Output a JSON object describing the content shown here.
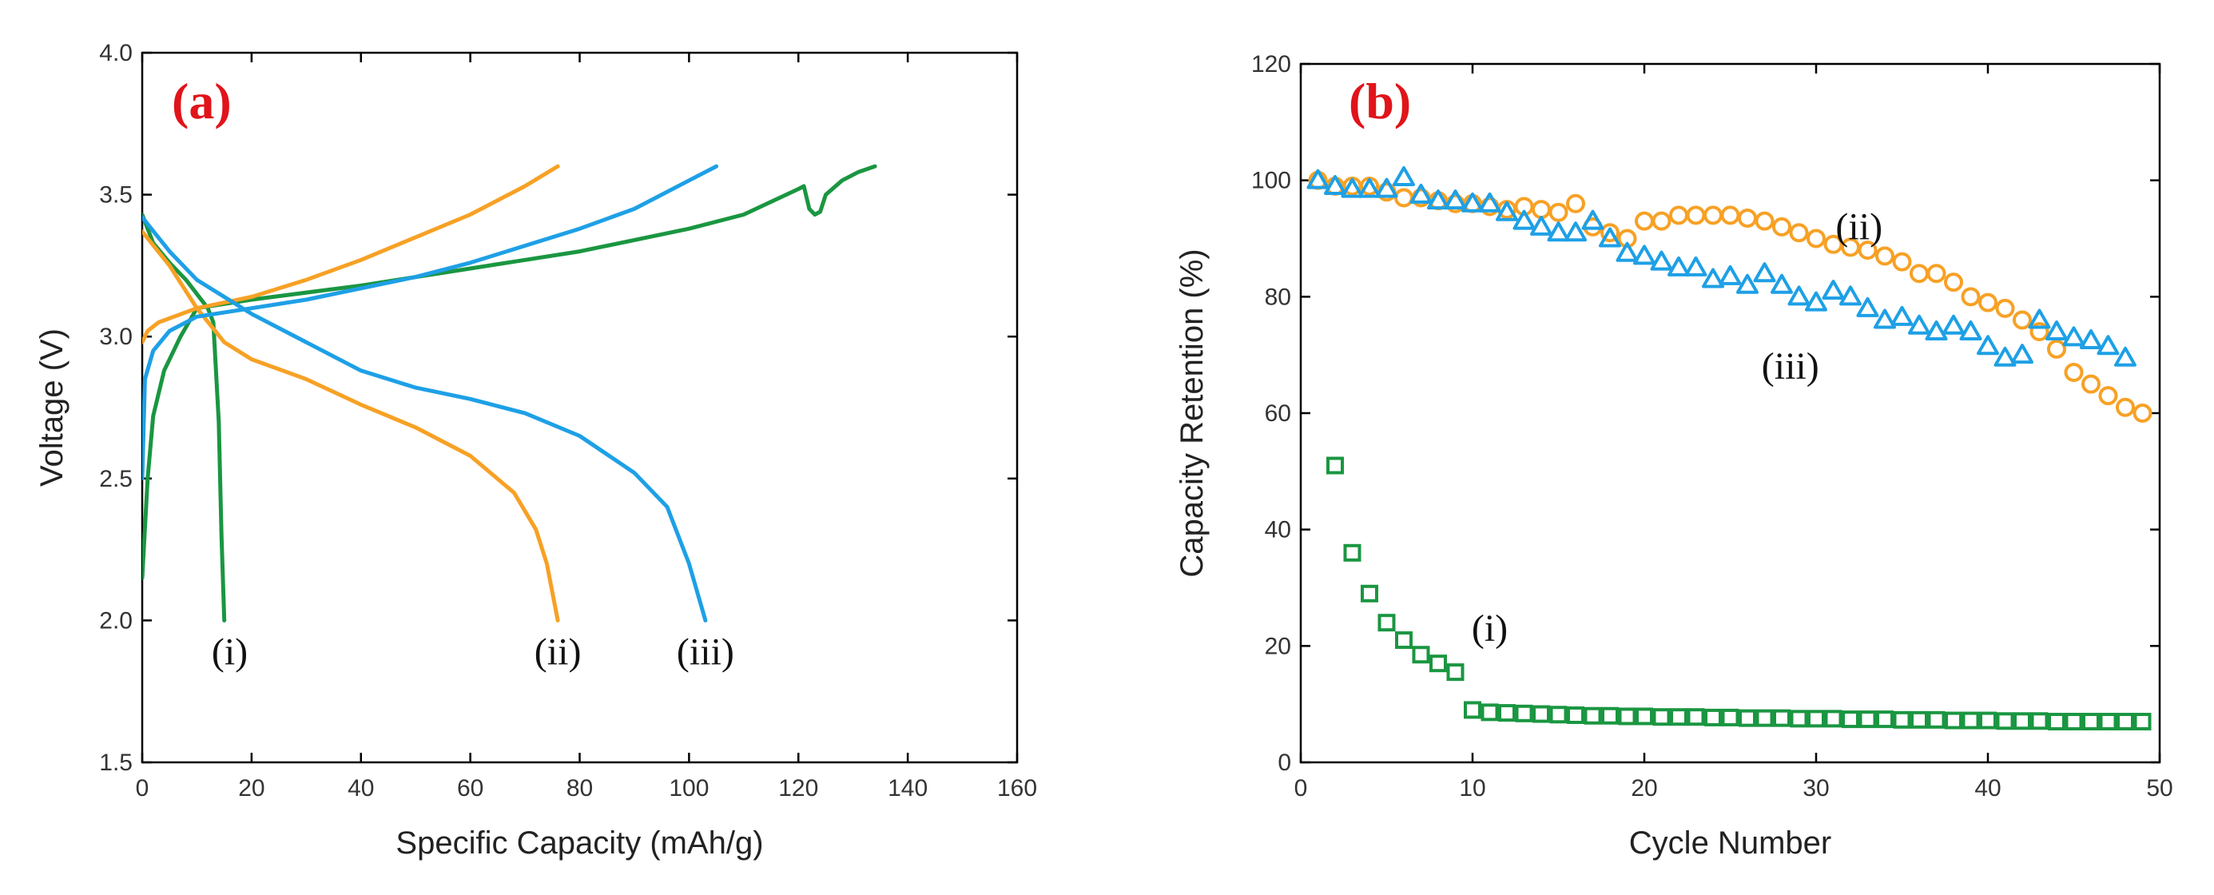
{
  "chart_data": [
    {
      "panel": "(a)",
      "type": "line",
      "xlabel": "Specific Capacity (mAh/g)",
      "ylabel": "Voltage (V)",
      "xlim": [
        0,
        160
      ],
      "ylim": [
        1.5,
        4.0
      ],
      "xticks": [
        0,
        20,
        40,
        60,
        80,
        100,
        120,
        140,
        160
      ],
      "yticks": [
        1.5,
        2.0,
        2.5,
        3.0,
        3.5,
        4.0
      ],
      "ytick_labels": [
        "1.5",
        "2.0",
        "2.5",
        "3.0",
        "3.5",
        "4.0"
      ],
      "series": [
        {
          "name": "(i)",
          "color": "#1a9641",
          "curves": [
            {
              "kind": "charge",
              "points": [
                [
                  0,
                  2.15
                ],
                [
                  1,
                  2.5
                ],
                [
                  2,
                  2.72
                ],
                [
                  4,
                  2.88
                ],
                [
                  7,
                  3.0
                ],
                [
                  10,
                  3.1
                ],
                [
                  20,
                  3.13
                ],
                [
                  40,
                  3.18
                ],
                [
                  60,
                  3.24
                ],
                [
                  80,
                  3.3
                ],
                [
                  100,
                  3.38
                ],
                [
                  110,
                  3.43
                ],
                [
                  120,
                  3.52
                ],
                [
                  121,
                  3.53
                ],
                [
                  122,
                  3.45
                ],
                [
                  123,
                  3.43
                ],
                [
                  124,
                  3.44
                ],
                [
                  125,
                  3.5
                ],
                [
                  128,
                  3.55
                ],
                [
                  131,
                  3.58
                ],
                [
                  134,
                  3.6
                ]
              ]
            },
            {
              "kind": "discharge",
              "points": [
                [
                  0,
                  3.43
                ],
                [
                  2,
                  3.33
                ],
                [
                  5,
                  3.26
                ],
                [
                  8,
                  3.2
                ],
                [
                  10,
                  3.15
                ],
                [
                  12,
                  3.1
                ],
                [
                  13,
                  3.05
                ],
                [
                  14,
                  2.7
                ],
                [
                  14.5,
                  2.3
                ],
                [
                  15,
                  2.0
                ]
              ]
            }
          ]
        },
        {
          "name": "(ii)",
          "color": "#f7a125",
          "curves": [
            {
              "kind": "charge",
              "points": [
                [
                  0,
                  2.98
                ],
                [
                  1,
                  3.02
                ],
                [
                  3,
                  3.05
                ],
                [
                  10,
                  3.1
                ],
                [
                  20,
                  3.14
                ],
                [
                  30,
                  3.2
                ],
                [
                  40,
                  3.27
                ],
                [
                  50,
                  3.35
                ],
                [
                  60,
                  3.43
                ],
                [
                  70,
                  3.53
                ],
                [
                  76,
                  3.6
                ]
              ]
            },
            {
              "kind": "discharge",
              "points": [
                [
                  0,
                  3.37
                ],
                [
                  5,
                  3.25
                ],
                [
                  10,
                  3.1
                ],
                [
                  15,
                  2.98
                ],
                [
                  20,
                  2.92
                ],
                [
                  30,
                  2.85
                ],
                [
                  40,
                  2.76
                ],
                [
                  50,
                  2.68
                ],
                [
                  60,
                  2.58
                ],
                [
                  68,
                  2.45
                ],
                [
                  72,
                  2.32
                ],
                [
                  74,
                  2.2
                ],
                [
                  76,
                  2.0
                ]
              ]
            }
          ]
        },
        {
          "name": "(iii)",
          "color": "#1ea0e6",
          "curves": [
            {
              "kind": "charge",
              "points": [
                [
                  0,
                  2.5
                ],
                [
                  0.5,
                  2.85
                ],
                [
                  2,
                  2.95
                ],
                [
                  5,
                  3.02
                ],
                [
                  10,
                  3.07
                ],
                [
                  20,
                  3.1
                ],
                [
                  30,
                  3.13
                ],
                [
                  40,
                  3.17
                ],
                [
                  50,
                  3.21
                ],
                [
                  60,
                  3.26
                ],
                [
                  70,
                  3.32
                ],
                [
                  80,
                  3.38
                ],
                [
                  90,
                  3.45
                ],
                [
                  100,
                  3.55
                ],
                [
                  105,
                  3.6
                ]
              ]
            },
            {
              "kind": "discharge",
              "points": [
                [
                  0,
                  3.42
                ],
                [
                  5,
                  3.3
                ],
                [
                  10,
                  3.2
                ],
                [
                  20,
                  3.08
                ],
                [
                  30,
                  2.98
                ],
                [
                  40,
                  2.88
                ],
                [
                  50,
                  2.82
                ],
                [
                  60,
                  2.78
                ],
                [
                  70,
                  2.73
                ],
                [
                  80,
                  2.65
                ],
                [
                  90,
                  2.52
                ],
                [
                  96,
                  2.4
                ],
                [
                  100,
                  2.2
                ],
                [
                  103,
                  2.0
                ]
              ]
            }
          ]
        }
      ],
      "annotations": [
        {
          "text": "(a)",
          "role": "panel-label"
        },
        {
          "text": "(i)",
          "x": 16,
          "y": 1.93
        },
        {
          "text": "(ii)",
          "x": 76,
          "y": 1.93
        },
        {
          "text": "(iii)",
          "x": 103,
          "y": 1.93
        }
      ]
    },
    {
      "panel": "(b)",
      "type": "scatter",
      "xlabel": "Cycle Number",
      "ylabel": "Capacity Retention (%)",
      "xlim": [
        0,
        50
      ],
      "ylim": [
        0,
        120
      ],
      "xticks": [
        0,
        10,
        20,
        30,
        40,
        50
      ],
      "yticks": [
        0,
        20,
        40,
        60,
        80,
        100,
        120
      ],
      "series": [
        {
          "name": "(i)",
          "marker": "square",
          "color": "#1a9641",
          "x": [
            2,
            3,
            4,
            5,
            6,
            7,
            8,
            9,
            10,
            11,
            12,
            13,
            14,
            15,
            16,
            17,
            18,
            19,
            20,
            21,
            22,
            23,
            24,
            25,
            26,
            27,
            28,
            29,
            30,
            31,
            32,
            33,
            34,
            35,
            36,
            37,
            38,
            39,
            40,
            41,
            42,
            43,
            44,
            45,
            46,
            47,
            48,
            49
          ],
          "y": [
            51,
            36,
            29,
            24,
            21,
            18.5,
            17,
            15.5,
            9,
            8.6,
            8.5,
            8.4,
            8.3,
            8.2,
            8.1,
            8.0,
            8.0,
            7.9,
            7.9,
            7.8,
            7.8,
            7.8,
            7.7,
            7.7,
            7.6,
            7.6,
            7.6,
            7.5,
            7.5,
            7.5,
            7.4,
            7.4,
            7.4,
            7.3,
            7.3,
            7.3,
            7.2,
            7.2,
            7.2,
            7.1,
            7.1,
            7.1,
            7.0,
            7.0,
            7.0,
            7.0,
            7.0,
            7.0
          ]
        },
        {
          "name": "(ii)",
          "marker": "circle",
          "color": "#f7a125",
          "x": [
            1,
            2,
            3,
            4,
            5,
            6,
            7,
            8,
            9,
            10,
            11,
            12,
            13,
            14,
            15,
            16,
            17,
            18,
            19,
            20,
            21,
            22,
            23,
            24,
            25,
            26,
            27,
            28,
            29,
            30,
            31,
            32,
            33,
            34,
            35,
            36,
            37,
            38,
            39,
            40,
            41,
            42,
            43,
            44,
            45,
            46,
            47,
            48,
            49
          ],
          "y": [
            100,
            99,
            99,
            99,
            98,
            97,
            97,
            96.5,
            96,
            96,
            95.5,
            95,
            95.5,
            95,
            94.5,
            96,
            92,
            91,
            90,
            93,
            93,
            94,
            94,
            94,
            94,
            93.5,
            93,
            92,
            91,
            90,
            89,
            88.5,
            88,
            87,
            86,
            84,
            84,
            82.5,
            80,
            79,
            78,
            76,
            74,
            71,
            67,
            65,
            63,
            61,
            60
          ]
        },
        {
          "name": "(iii)",
          "marker": "triangle",
          "color": "#1ea0e6",
          "x": [
            1,
            2,
            3,
            4,
            5,
            6,
            7,
            8,
            9,
            10,
            11,
            12,
            13,
            14,
            15,
            16,
            17,
            18,
            19,
            20,
            21,
            22,
            23,
            24,
            25,
            26,
            27,
            28,
            29,
            30,
            31,
            32,
            33,
            34,
            35,
            36,
            37,
            38,
            39,
            40,
            41,
            42,
            43,
            44,
            45,
            46,
            47,
            48
          ],
          "y": [
            100,
            99,
            98.5,
            98.5,
            98.5,
            100.5,
            97.5,
            96.5,
            96.5,
            96,
            96,
            94.5,
            93,
            92,
            91,
            91,
            93,
            90,
            87.5,
            87,
            86,
            85,
            85,
            83,
            83.5,
            82,
            84,
            82,
            80,
            79,
            81,
            80,
            78,
            76,
            76.5,
            75,
            74,
            75,
            74,
            71.5,
            69.5,
            70,
            76,
            74,
            73,
            72.5,
            71.5,
            69.5
          ]
        }
      ],
      "annotations": [
        {
          "text": "(b)",
          "role": "panel-label"
        },
        {
          "text": "(i)",
          "x": 11,
          "y": 25
        },
        {
          "text": "(ii)",
          "x": 32.5,
          "y": 94
        },
        {
          "text": "(iii)",
          "x": 28.5,
          "y": 70
        }
      ]
    }
  ]
}
